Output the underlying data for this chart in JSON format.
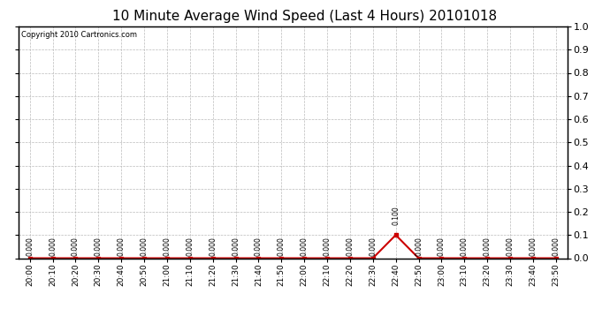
{
  "title": "10 Minute Average Wind Speed (Last 4 Hours) 20101018",
  "copyright": "Copyright 2010 Cartronics.com",
  "x_labels": [
    "20:00",
    "20:10",
    "20:20",
    "20:30",
    "20:40",
    "20:50",
    "21:00",
    "21:10",
    "21:20",
    "21:30",
    "21:40",
    "21:50",
    "22:00",
    "22:10",
    "22:20",
    "22:30",
    "22:40",
    "22:50",
    "23:00",
    "23:10",
    "23:20",
    "23:30",
    "23:40",
    "23:50"
  ],
  "y_values": [
    0.0,
    0.0,
    0.0,
    0.0,
    0.0,
    0.0,
    0.0,
    0.0,
    0.0,
    0.0,
    0.0,
    0.0,
    0.0,
    0.0,
    0.0,
    0.0,
    0.1,
    0.0,
    0.0,
    0.0,
    0.0,
    0.0,
    0.0,
    0.0
  ],
  "data_labels": [
    "0.000",
    "0.000",
    "0.000",
    "0.000",
    "0.000",
    "0.000",
    "0.000",
    "0.000",
    "0.000",
    "0.000",
    "0.000",
    "0.000",
    "0.000",
    "0.000",
    "0.000",
    "0.000",
    "0.100",
    "0.000",
    "0.000",
    "0.000",
    "0.000",
    "0.000",
    "0.000",
    "0.000"
  ],
  "line_color": "#cc0000",
  "marker_color": "#cc0000",
  "bg_color": "#ffffff",
  "plot_bg_color": "#ffffff",
  "grid_color": "#bbbbbb",
  "title_fontsize": 11,
  "ylim": [
    0.0,
    1.0
  ],
  "yticks": [
    0.0,
    0.1,
    0.2,
    0.3,
    0.4,
    0.5,
    0.6,
    0.7,
    0.8,
    0.9,
    1.0
  ]
}
